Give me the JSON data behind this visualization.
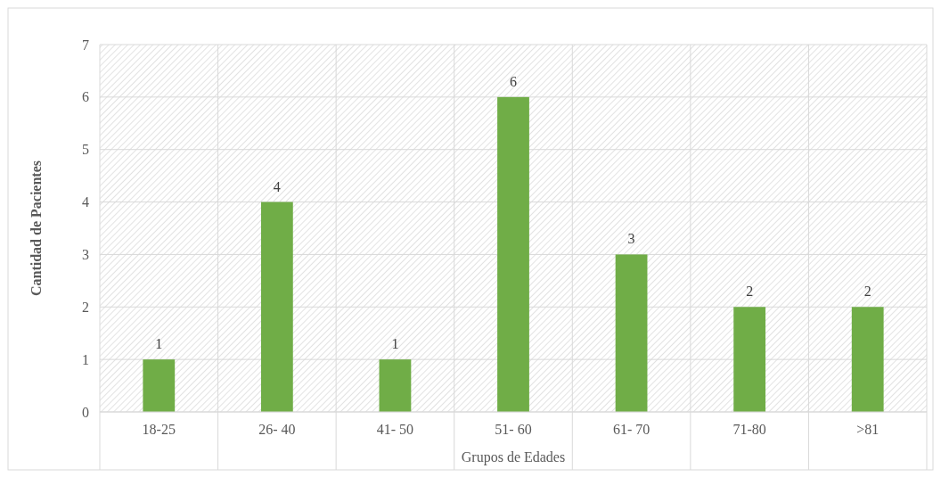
{
  "chart_data": {
    "type": "bar",
    "xlabel": "Grupos de Edades",
    "ylabel": "Cantidad de Pacientes",
    "categories": [
      "18-25",
      "26- 40",
      "41- 50",
      "51- 60",
      "61- 70",
      "71-80",
      ">81"
    ],
    "values": [
      1,
      4,
      1,
      6,
      3,
      2,
      2
    ],
    "color": "#70ad47",
    "ylim": [
      0,
      7
    ],
    "yticks": [
      0,
      1,
      2,
      3,
      4,
      5,
      6,
      7
    ],
    "grid": true,
    "data_labels": true
  }
}
